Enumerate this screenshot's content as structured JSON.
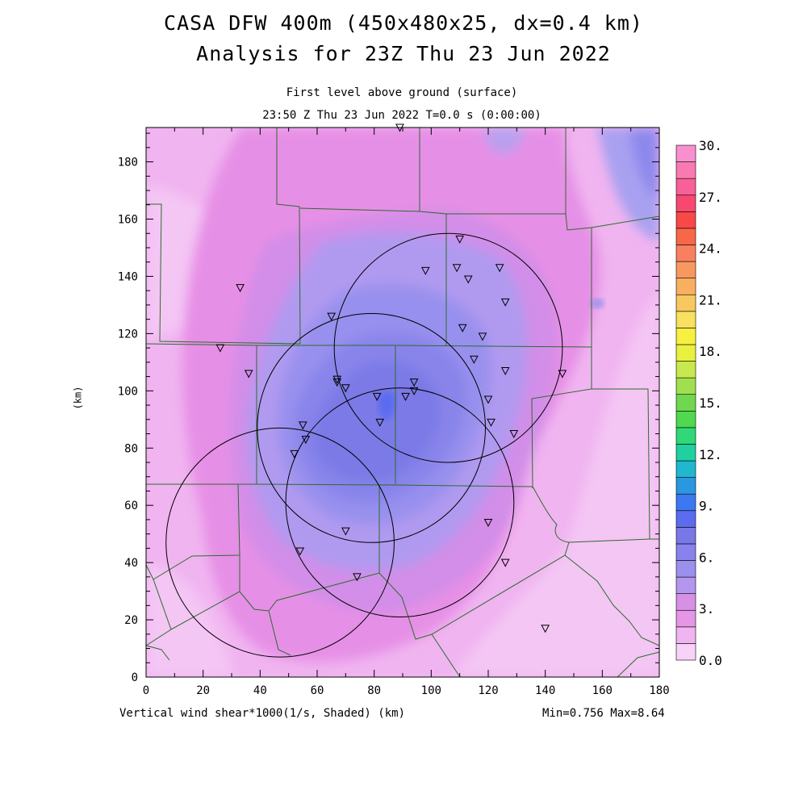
{
  "header": {
    "title_line1": "CASA DFW 400m (450x480x25, dx=0.4 km)",
    "title_line2": "Analysis for 23Z Thu 23 Jun 2022",
    "subtitle_line1": "First level above ground (surface)",
    "subtitle_line2": "23:50 Z Thu 23 Jun 2022    T=0.0 s (0:00:00)"
  },
  "footer": {
    "variable_label": "Vertical wind shear*1000(1/s, Shaded)  (km)",
    "min_max": "Min=0.756 Max=8.64"
  },
  "axes": {
    "xlabel": "(km)",
    "ylabel": "(km)",
    "xlim": [
      0,
      180
    ],
    "ylim": [
      0,
      192
    ],
    "x_ticks": [
      "0",
      "20",
      "40",
      "60",
      "80",
      "100",
      "120",
      "140",
      "160",
      "180"
    ],
    "y_ticks": [
      "0",
      "20",
      "40",
      "60",
      "80",
      "100",
      "120",
      "140",
      "160",
      "180"
    ]
  },
  "colorbar": {
    "labels": [
      "0.0",
      "3.",
      "6.",
      "9.",
      "12.",
      "15.",
      "18.",
      "21.",
      "24.",
      "27.",
      "30."
    ],
    "colors": [
      "#f8d2f8",
      "#f0b4f0",
      "#e696e6",
      "#d690e6",
      "#b496ee",
      "#9c90ee",
      "#8a82ec",
      "#7878e6",
      "#5c6cf0",
      "#3c78f0",
      "#2a98e0",
      "#20b8d0",
      "#20d0a0",
      "#30d878",
      "#50d850",
      "#70d850",
      "#a0e050",
      "#c8e850",
      "#e8f040",
      "#f8f040",
      "#f8e060",
      "#f8c860",
      "#f8b060",
      "#f89860",
      "#f88060",
      "#f86848",
      "#f84848",
      "#f84870",
      "#f86098",
      "#f87ab0",
      "#f890d0"
    ]
  },
  "stations": [
    [
      89,
      192
    ],
    [
      110,
      153
    ],
    [
      98,
      142
    ],
    [
      109,
      143
    ],
    [
      113,
      139
    ],
    [
      124,
      143
    ],
    [
      126,
      131
    ],
    [
      111,
      122
    ],
    [
      118,
      119
    ],
    [
      115,
      111
    ],
    [
      126,
      107
    ],
    [
      120,
      97
    ],
    [
      121,
      89
    ],
    [
      129,
      85
    ],
    [
      146,
      106
    ],
    [
      33,
      136
    ],
    [
      26,
      115
    ],
    [
      36,
      106
    ],
    [
      65,
      126
    ],
    [
      67,
      104
    ],
    [
      67,
      103
    ],
    [
      70,
      101
    ],
    [
      81,
      98
    ],
    [
      91,
      98
    ],
    [
      94,
      103
    ],
    [
      94,
      100
    ],
    [
      82,
      89
    ],
    [
      55,
      88
    ],
    [
      56,
      83
    ],
    [
      52,
      78
    ],
    [
      70,
      51
    ],
    [
      54,
      44
    ],
    [
      74,
      35
    ],
    [
      120,
      54
    ],
    [
      126,
      40
    ],
    [
      140,
      17
    ]
  ],
  "radar_rings": [
    {
      "center_km": [
        106,
        115
      ],
      "radius_km": 40
    },
    {
      "center_km": [
        79,
        87
      ],
      "radius_km": 40
    },
    {
      "center_km": [
        89,
        61
      ],
      "radius_km": 40
    },
    {
      "center_km": [
        47,
        47
      ],
      "radius_km": 40
    }
  ],
  "chart_data": {
    "type": "heatmap",
    "title": "CASA DFW 400m (450x480x25, dx=0.4 km)",
    "subtitle": "Analysis for 23Z Thu 23 Jun 2022",
    "field": "Vertical wind shear*1000(1/s, Shaded)",
    "min": 0.756,
    "max": 8.64,
    "contour_interval": 1,
    "scale_range": [
      0,
      30
    ],
    "xlim": [
      0,
      180
    ],
    "ylim": [
      0,
      192
    ],
    "units_axes": "km"
  }
}
